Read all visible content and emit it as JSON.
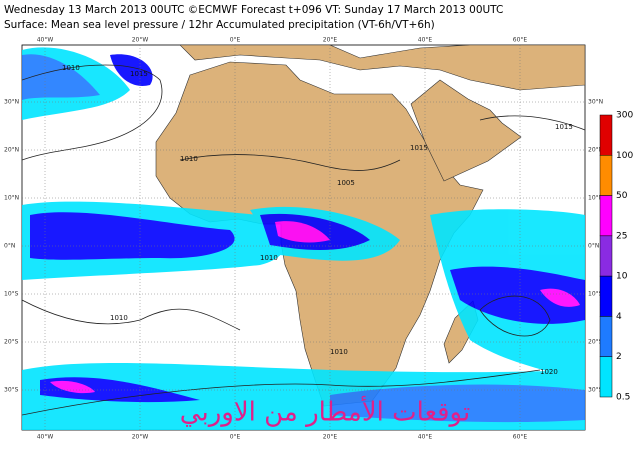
{
  "header": {
    "title": "Wednesday 13 March 2013 00UTC ©ECMWF Forecast t+096 VT: Sunday 17 March 2013 00UTC",
    "subtitle": "Surface: Mean sea level pressure / 12hr Accumulated precipitation (VT-6h/VT+6h)"
  },
  "map": {
    "lon_labels": [
      "40°W",
      "20°W",
      "0°E",
      "20°E",
      "40°E",
      "60°E"
    ],
    "lat_labels": [
      "30°N",
      "20°N",
      "10°N",
      "0°N",
      "10°S",
      "20°S",
      "30°S"
    ],
    "isobar_labels": [
      "1010",
      "1015",
      "1010",
      "1005",
      "1010",
      "1010",
      "1015",
      "1020",
      "1010",
      "1015"
    ]
  },
  "colorbar": {
    "levels": [
      300,
      100,
      50,
      25,
      10,
      4,
      2,
      0.5
    ],
    "colors": [
      "#e00000",
      "#ff8c00",
      "#ff00ff",
      "#8a2be2",
      "#0000ff",
      "#1e7bff",
      "#00e5ff"
    ]
  },
  "watermark": "توقعات الأمطار من الاوربي"
}
